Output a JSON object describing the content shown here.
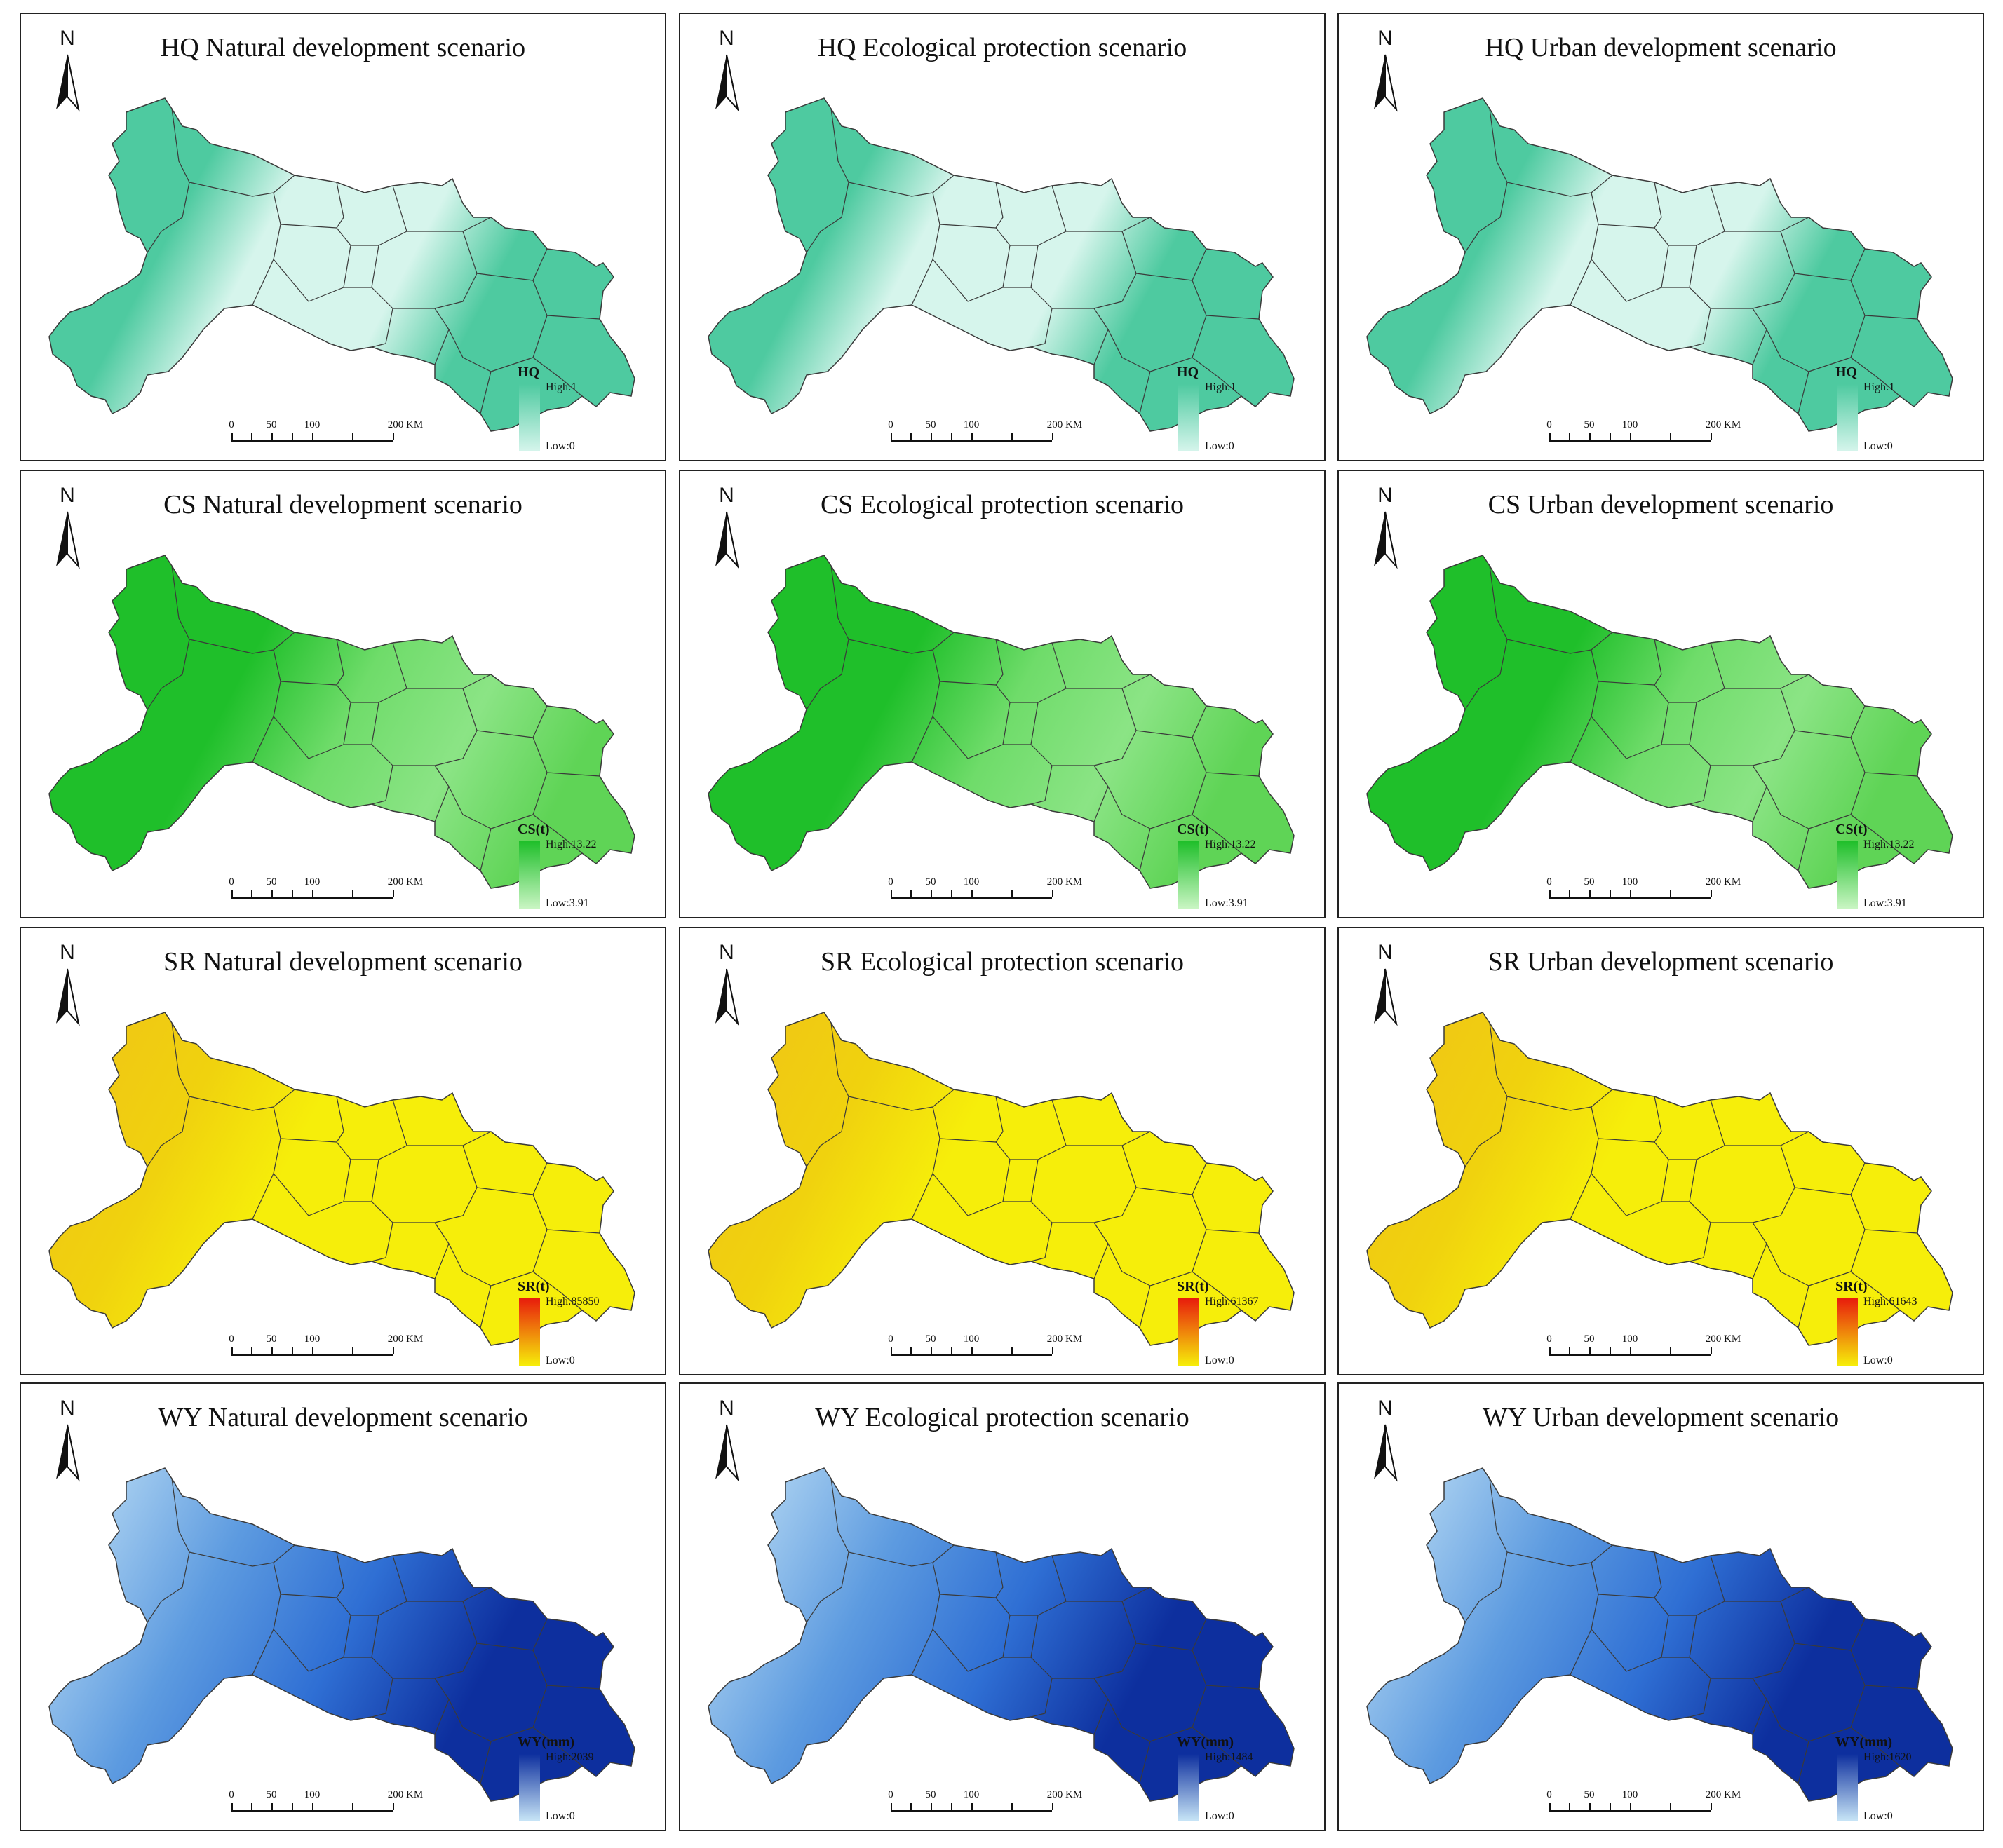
{
  "north_label": "N",
  "scale_labels": [
    "0",
    "50",
    "100",
    "200 KM"
  ],
  "rows": [
    {
      "key": "hq",
      "legend_title": "HQ",
      "colors": {
        "high": "#4ecaa0",
        "low": "#d6f5ec",
        "boundary": "#3a3a3a"
      },
      "panels": [
        {
          "title": "HQ Natural development scenario",
          "high": "High:1",
          "low": "Low:0"
        },
        {
          "title": "HQ Ecological protection scenario",
          "high": "High:1",
          "low": "Low:0"
        },
        {
          "title": "HQ Urban development scenario",
          "high": "High:1",
          "low": "Low:0"
        }
      ]
    },
    {
      "key": "cs",
      "legend_title": "CS(t)",
      "colors": {
        "high": "#1fbf2a",
        "low": "#c9f5c3",
        "boundary": "#3a3a3a"
      },
      "panels": [
        {
          "title": "CS Natural development scenario",
          "high": "High:13.22",
          "low": "Low:3.91"
        },
        {
          "title": "CS Ecological protection scenario",
          "high": "High:13.22",
          "low": "Low:3.91"
        },
        {
          "title": "CS Urban development scenario",
          "high": "High:13.22",
          "low": "Low:3.91"
        }
      ]
    },
    {
      "key": "sr",
      "legend_title": "SR(t)",
      "colors": {
        "high": "#e81c0c",
        "low": "#f6ee0a",
        "boundary": "#3a3a3a"
      },
      "panels": [
        {
          "title": "SR Natural development scenario",
          "high": "High:85850",
          "low": "Low:0"
        },
        {
          "title": "SR Ecological protection scenario",
          "high": "High:61367",
          "low": "Low:0"
        },
        {
          "title": "SR Urban development scenario",
          "high": "High:61643",
          "low": "Low:0"
        }
      ]
    },
    {
      "key": "wy",
      "legend_title": "WY(mm)",
      "colors": {
        "high": "#0d2f9e",
        "low": "#c9e6f7",
        "boundary": "#3a3a3a"
      },
      "panels": [
        {
          "title": "WY Natural development scenario",
          "high": "High:2039",
          "low": "Low:0"
        },
        {
          "title": "WY Ecological protection scenario",
          "high": "High:1484",
          "low": "Low:0"
        },
        {
          "title": "WY Urban development scenario",
          "high": "High:1620",
          "low": "Low:0"
        }
      ]
    }
  ]
}
